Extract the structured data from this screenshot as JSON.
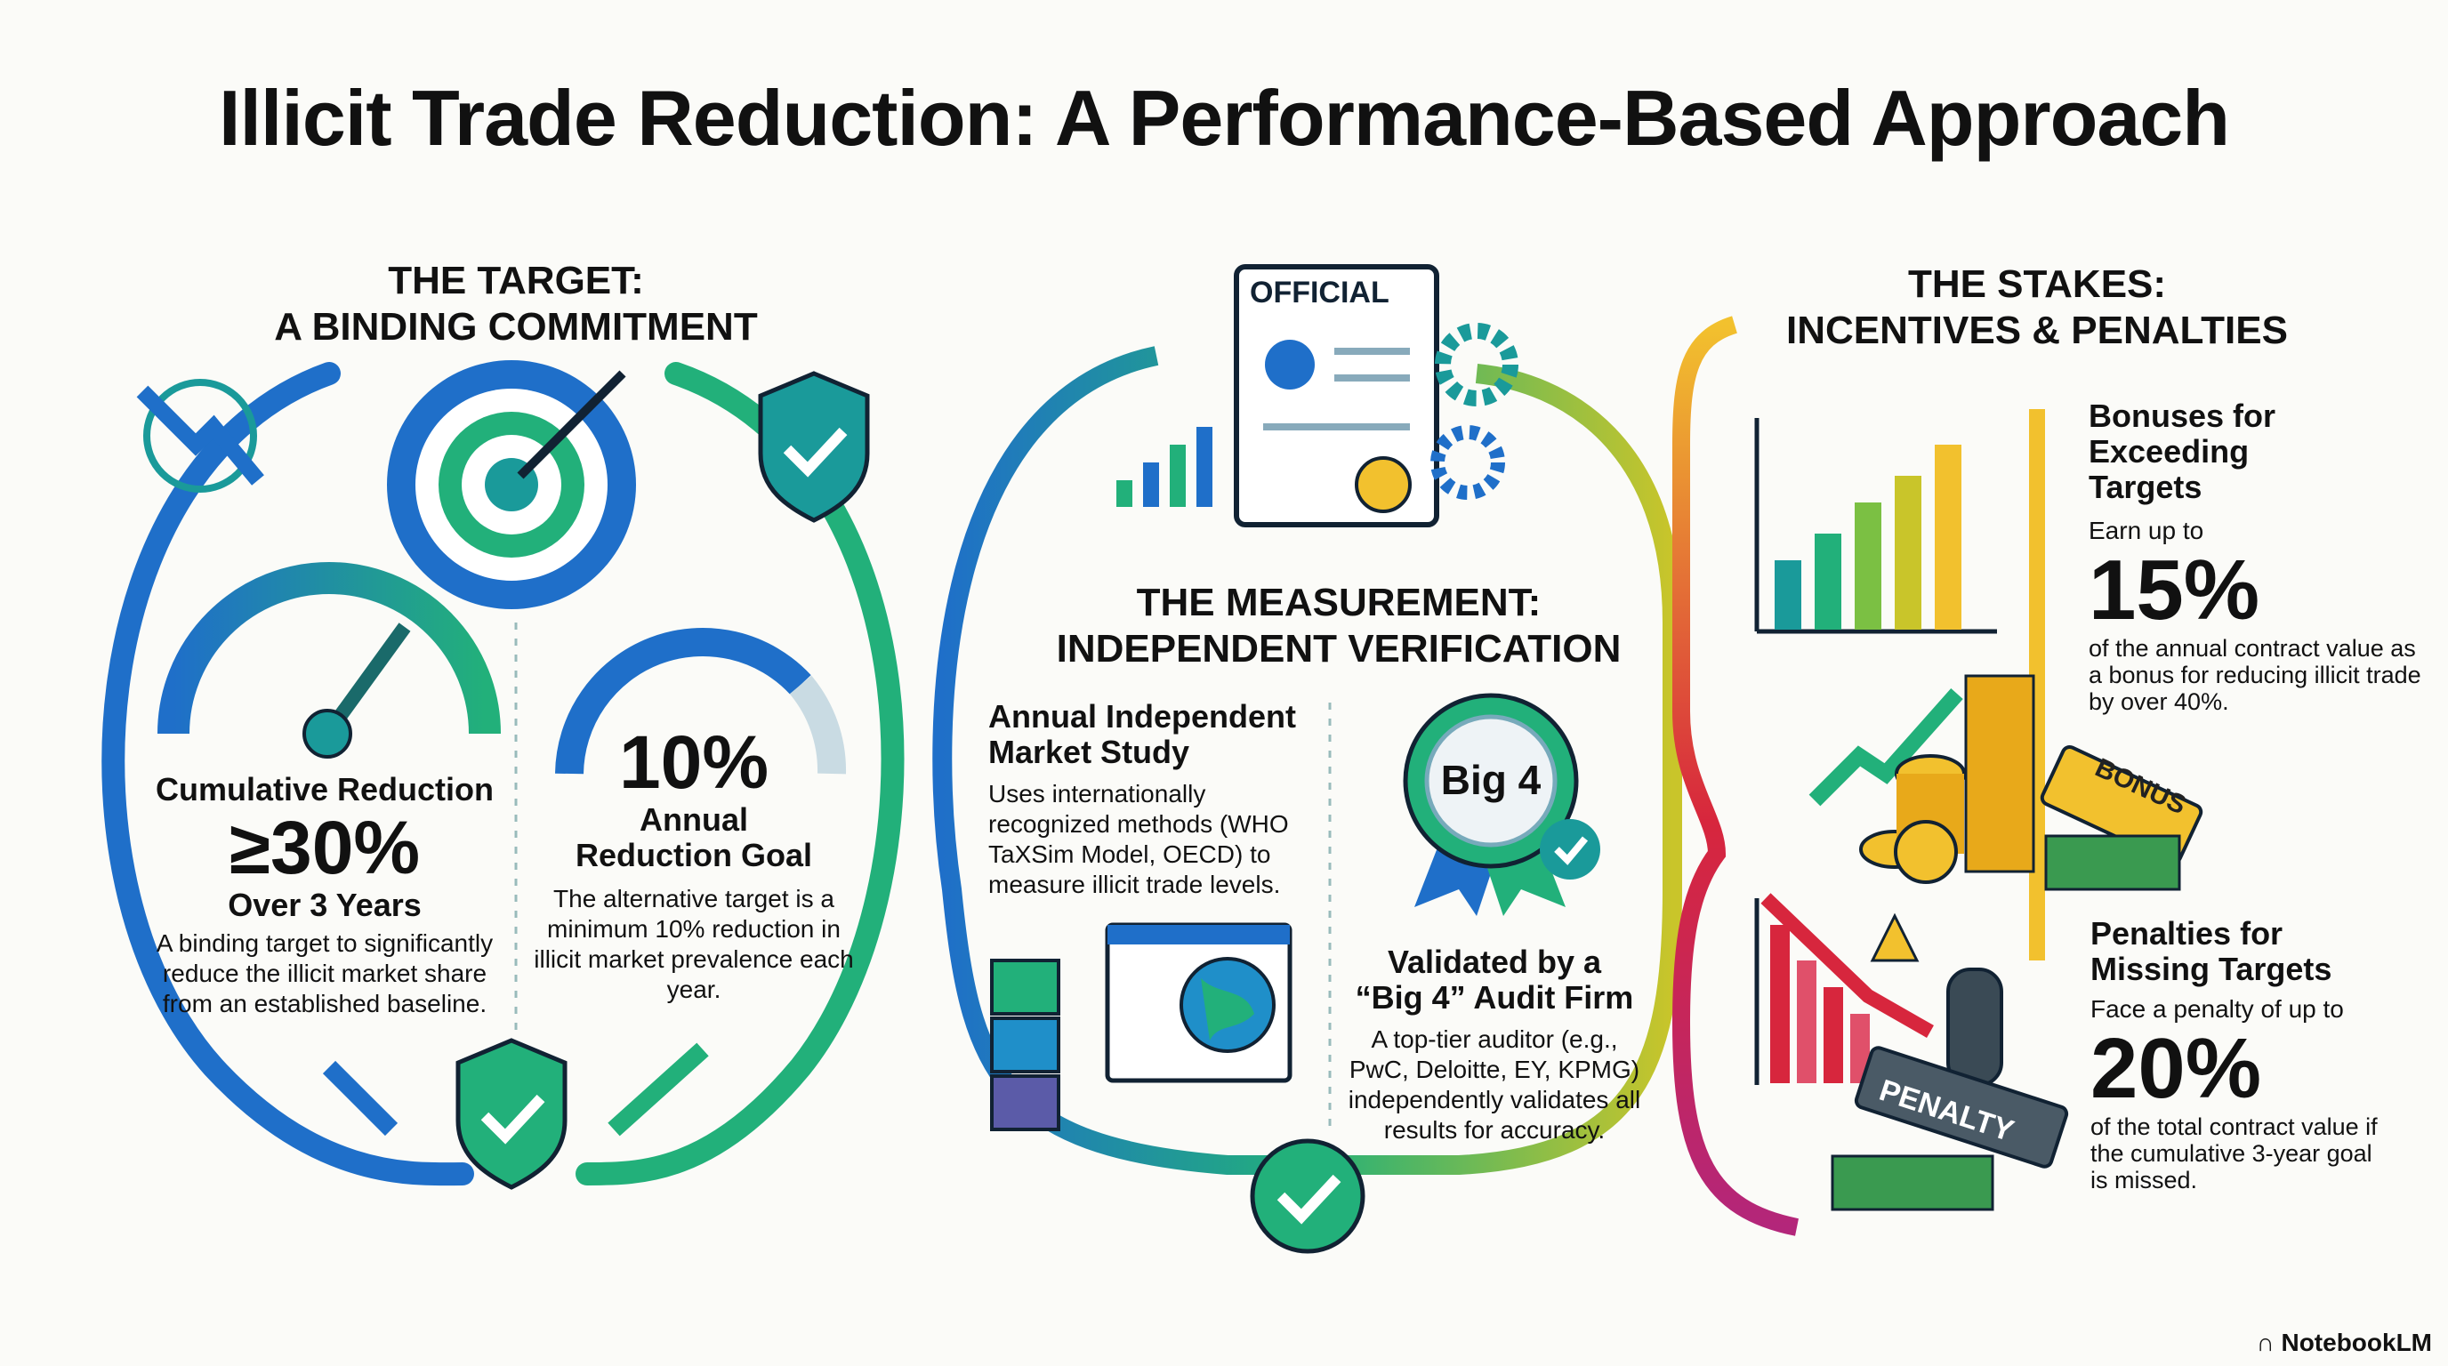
{
  "title": "Illicit Trade Reduction: A Performance-Based Approach",
  "colors": {
    "blue": "#1f6fc9",
    "green": "#22b07a",
    "teal": "#1a9a9a",
    "yellow": "#f2c12e",
    "red": "#d7263d",
    "magenta": "#b3267a"
  },
  "target": {
    "heading_line1": "THE TARGET:",
    "heading_line2": "A BINDING COMMITMENT",
    "cumulative": {
      "label": "Cumulative Reduction",
      "value": "≥30%",
      "period": "Over 3 Years",
      "description": "A binding target to significantly reduce the illicit market share from an established baseline."
    },
    "annual": {
      "value": "10%",
      "label_line1": "Annual",
      "label_line2": "Reduction Goal",
      "description": "The alternative target is a minimum 10% reduction in illicit market prevalence each year."
    }
  },
  "measurement": {
    "heading_line1": "THE MEASUREMENT:",
    "heading_line2": "INDEPENDENT VERIFICATION",
    "document_label": "OFFICIAL",
    "study": {
      "title_line1": "Annual Independent",
      "title_line2": "Market Study",
      "description": "Uses internationally recognized methods (WHO TaXSim Model, OECD) to measure illicit trade levels."
    },
    "audit": {
      "badge": "Big 4",
      "title_line1": "Validated by a",
      "title_line2": "“Big 4” Audit Firm",
      "description": "A top-tier auditor (e.g., PwC, Deloitte, EY, KPMG) independently validates all results for accuracy."
    }
  },
  "stakes": {
    "heading_line1": "THE STAKES:",
    "heading_line2": "INCENTIVES & PENALTIES",
    "bonus": {
      "title": "Bonuses for Exceeding Targets",
      "lead": "Earn up to",
      "value": "15%",
      "description": "of the annual contract value as a bonus for reducing illicit trade by over 40%.",
      "tag": "BONUS"
    },
    "penalty": {
      "title": "Penalties for Missing Targets",
      "lead": "Face a penalty of up to",
      "value": "20%",
      "description": "of the total contract value if the cumulative 3-year goal is missed.",
      "stamp": "PENALTY"
    }
  },
  "footer": {
    "brand": "NotebookLM"
  }
}
